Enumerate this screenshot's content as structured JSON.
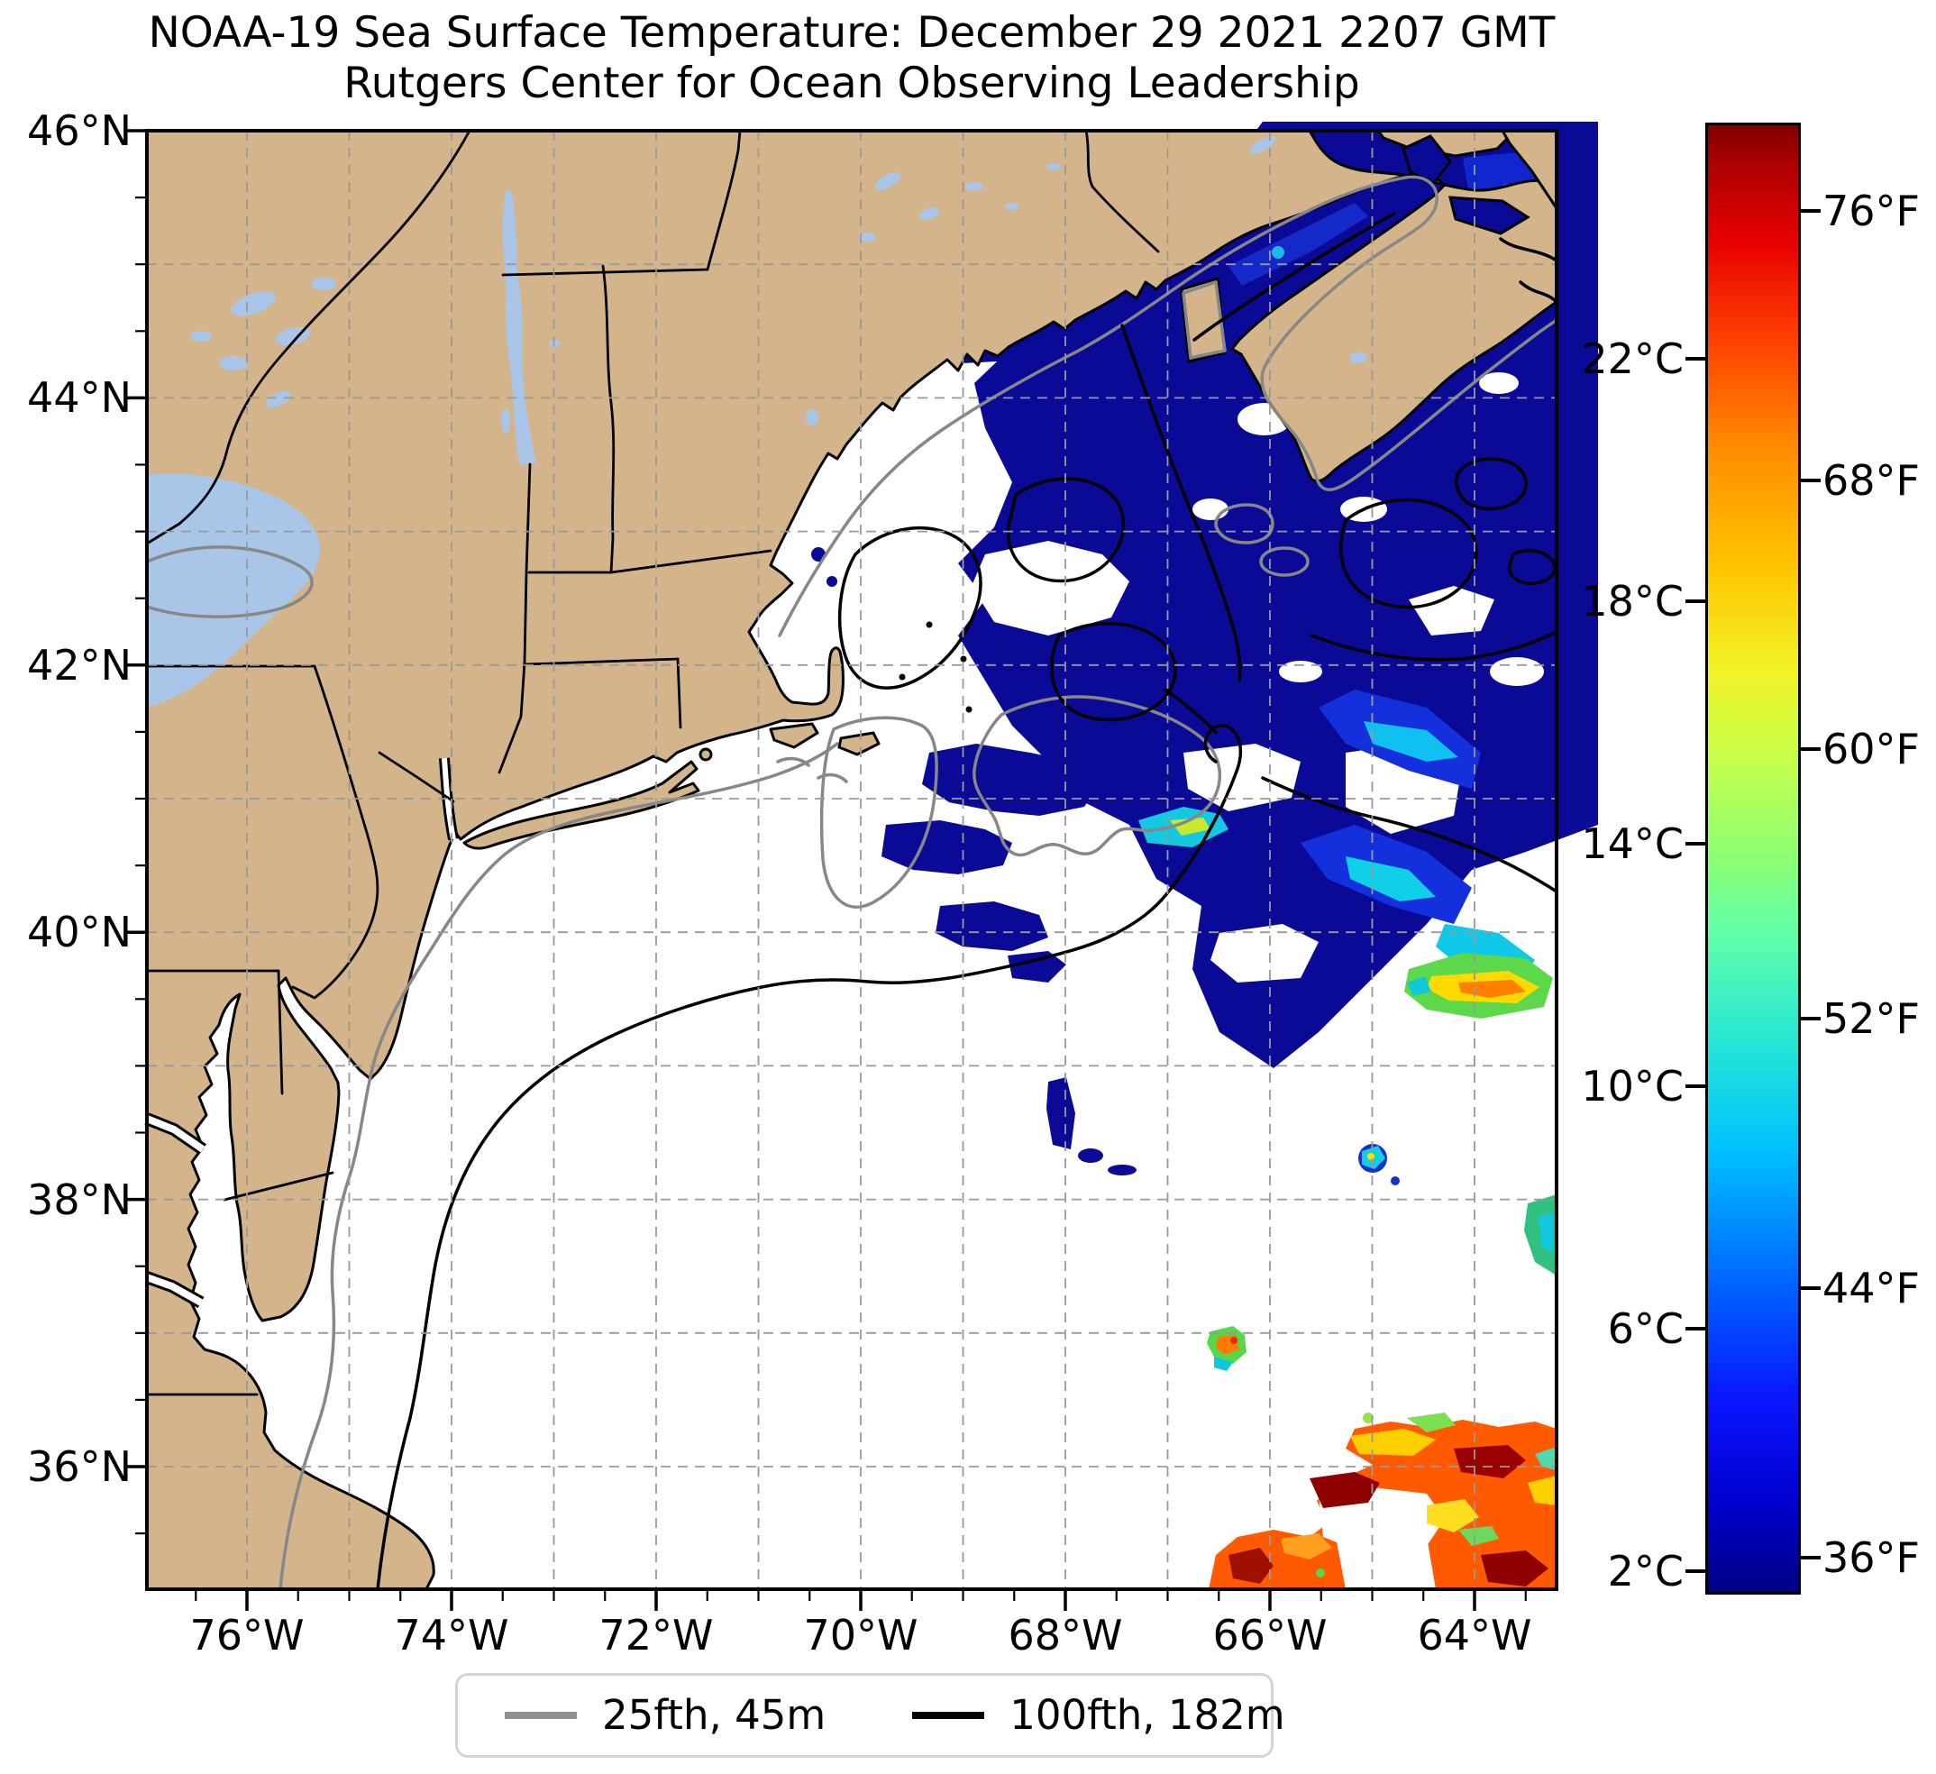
{
  "title": {
    "line1": "NOAA-19 Sea Surface Temperature: December 29 2021 2207 GMT",
    "line2": "Rutgers Center for Ocean Observing Leadership"
  },
  "axes": {
    "lat_labels": [
      "46°N",
      "44°N",
      "42°N",
      "40°N",
      "38°N",
      "36°N"
    ],
    "lon_labels": [
      "76°W",
      "74°W",
      "72°W",
      "70°W",
      "68°W",
      "66°W",
      "64°W"
    ]
  },
  "colorbar": {
    "celsius_labels": [
      "22°C",
      "18°C",
      "14°C",
      "10°C",
      "6°C",
      "2°C"
    ],
    "fahrenheit_labels": [
      "76°F",
      "68°F",
      "60°F",
      "52°F",
      "44°F",
      "36°F"
    ],
    "min_c": 1.7,
    "max_c": 25.9,
    "colormap": "jet"
  },
  "legend": {
    "items": [
      {
        "label": "25fth, 45m",
        "color": "#909090"
      },
      {
        "label": "100fth, 182m",
        "color": "#000000"
      }
    ]
  },
  "colors": {
    "land": "#d3b48b",
    "lake": "#a9c6e8",
    "ocean": "#ffffff",
    "sst-cold": "#0a0a97",
    "grid": "#999999",
    "contour-shallow": "#878787",
    "contour-deep": "#000000",
    "text": "#000000"
  }
}
